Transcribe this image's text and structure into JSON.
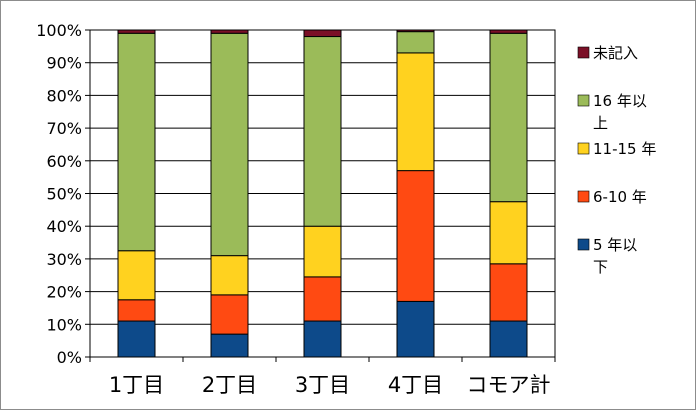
{
  "chart_data": {
    "type": "bar",
    "stacked": true,
    "percent": true,
    "categories": [
      "1丁目",
      "2丁目",
      "3丁目",
      "4丁目",
      "コモア計"
    ],
    "series": [
      {
        "name": "5 年以下",
        "color": "#0d4a8a",
        "values": [
          11,
          7,
          11,
          17,
          11
        ]
      },
      {
        "name": "6-10 年",
        "color": "#ff4a12",
        "values": [
          6.5,
          12,
          13.5,
          40,
          17.5
        ]
      },
      {
        "name": "11-15 年",
        "color": "#ffd21f",
        "values": [
          15,
          12,
          15.5,
          36,
          19
        ]
      },
      {
        "name": "16 年以上",
        "color": "#9bbb59",
        "values": [
          66.5,
          68,
          58,
          6.5,
          51.5
        ]
      },
      {
        "name": "未記入",
        "color": "#7b1027",
        "values": [
          1,
          1,
          2,
          0.5,
          1
        ]
      }
    ],
    "y_ticks": [
      "0%",
      "10%",
      "20%",
      "30%",
      "40%",
      "50%",
      "60%",
      "70%",
      "80%",
      "90%",
      "100%"
    ],
    "ylim": [
      0,
      100
    ],
    "grid": true,
    "legend_position": "right",
    "legend_order": [
      "未記入",
      "16 年以上",
      "11-15 年",
      "6-10 年",
      "5 年以下"
    ],
    "legend_lines": {
      "未記入": [
        "未記入"
      ],
      "16 年以上": [
        "16 年以",
        "上"
      ],
      "11-15 年": [
        "11-15 年"
      ],
      "6-10 年": [
        "6-10 年"
      ],
      "5 年以下": [
        "5 年以",
        "下"
      ]
    }
  }
}
